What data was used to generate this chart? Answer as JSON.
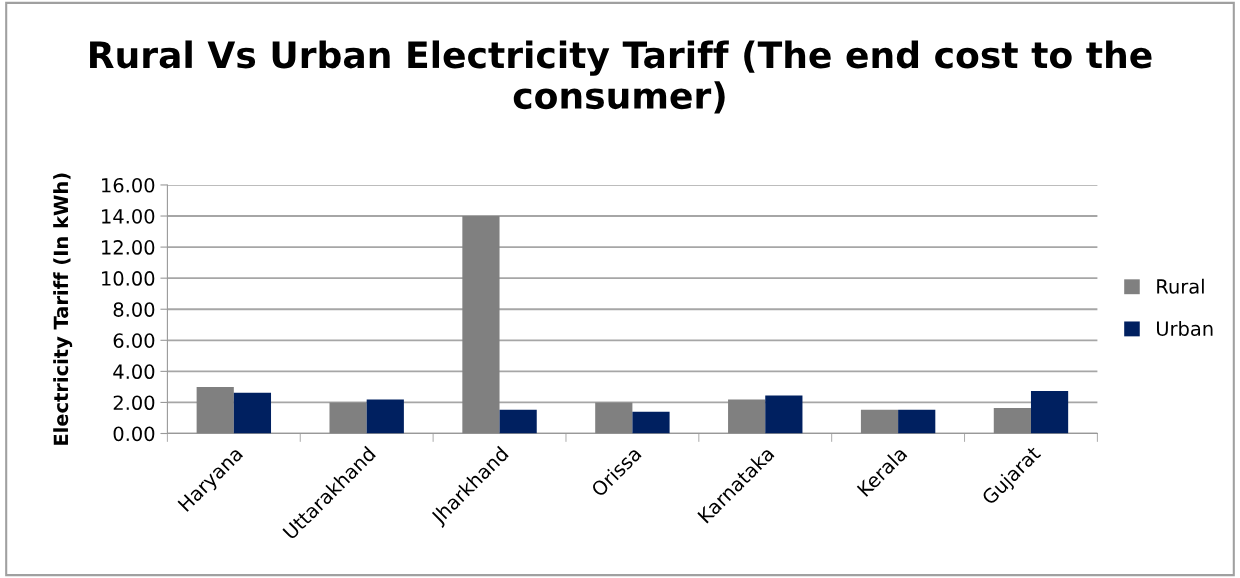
{
  "chart_data": {
    "type": "bar",
    "title": "Rural Vs Urban Electricity Tariff (The end cost to the consumer)",
    "ylabel": "Electricity Tariff (In kWh)",
    "categories": [
      "Haryana",
      "Uttarakhand",
      "Jharkhand",
      "Orissa",
      "Karnataka",
      "Kerala",
      "Gujarat"
    ],
    "series": [
      {
        "name": "Rural",
        "color": "#808080",
        "values": [
          3.0,
          2.0,
          14.0,
          2.0,
          2.19,
          1.53,
          1.64
        ]
      },
      {
        "name": "Urban",
        "color": "#002060",
        "values": [
          2.62,
          2.19,
          1.53,
          1.4,
          2.45,
          1.53,
          2.74
        ]
      }
    ],
    "ylim": [
      0,
      16
    ],
    "yticks": [
      {
        "value": 0,
        "label": "0.00"
      },
      {
        "value": 2,
        "label": "2.00"
      },
      {
        "value": 4,
        "label": "4.00"
      },
      {
        "value": 6,
        "label": "6.00"
      },
      {
        "value": 8,
        "label": "8.00"
      },
      {
        "value": 10,
        "label": "10.00"
      },
      {
        "value": 12,
        "label": "12.00"
      },
      {
        "value": 14,
        "label": "14.00"
      },
      {
        "value": 16,
        "label": "16.00"
      }
    ],
    "grid": "y",
    "legend": "right"
  }
}
